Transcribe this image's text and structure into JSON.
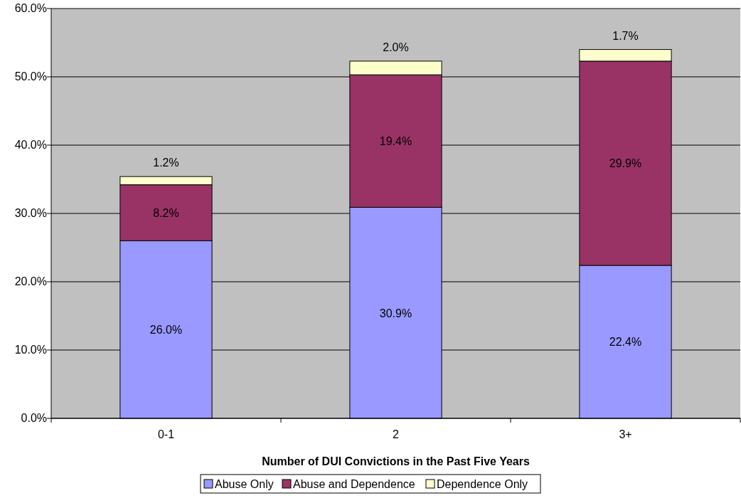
{
  "chart_data": {
    "type": "bar",
    "stacked": true,
    "xlabel": "Number of DUI Convictions in the Past Five Years",
    "categories": [
      "0-1",
      "2",
      "3+"
    ],
    "series": [
      {
        "name": "Abuse Only",
        "color": "#9999ff",
        "values": [
          26.0,
          30.9,
          22.4
        ],
        "value_labels": [
          "26.0%",
          "30.9%",
          "22.4%"
        ]
      },
      {
        "name": "Abuse and Dependence",
        "color": "#993366",
        "values": [
          8.2,
          19.4,
          29.9
        ],
        "value_labels": [
          "8.2%",
          "19.4%",
          "29.9%"
        ]
      },
      {
        "name": "Dependence Only",
        "color": "#ffffcc",
        "values": [
          1.2,
          2.0,
          1.7
        ],
        "value_labels": [
          "1.2%",
          "2.0%",
          "1.7%"
        ]
      }
    ],
    "ylim": [
      0,
      60
    ],
    "yticks": [
      {
        "value": 0,
        "label": "0.0%"
      },
      {
        "value": 10,
        "label": "10.0%"
      },
      {
        "value": 20,
        "label": "20.0%"
      },
      {
        "value": 30,
        "label": "30.0%"
      },
      {
        "value": 40,
        "label": "40.0%"
      },
      {
        "value": 50,
        "label": "50.0%"
      },
      {
        "value": 60,
        "label": "60.0%"
      }
    ],
    "grid": "y",
    "legend": "bottom"
  }
}
